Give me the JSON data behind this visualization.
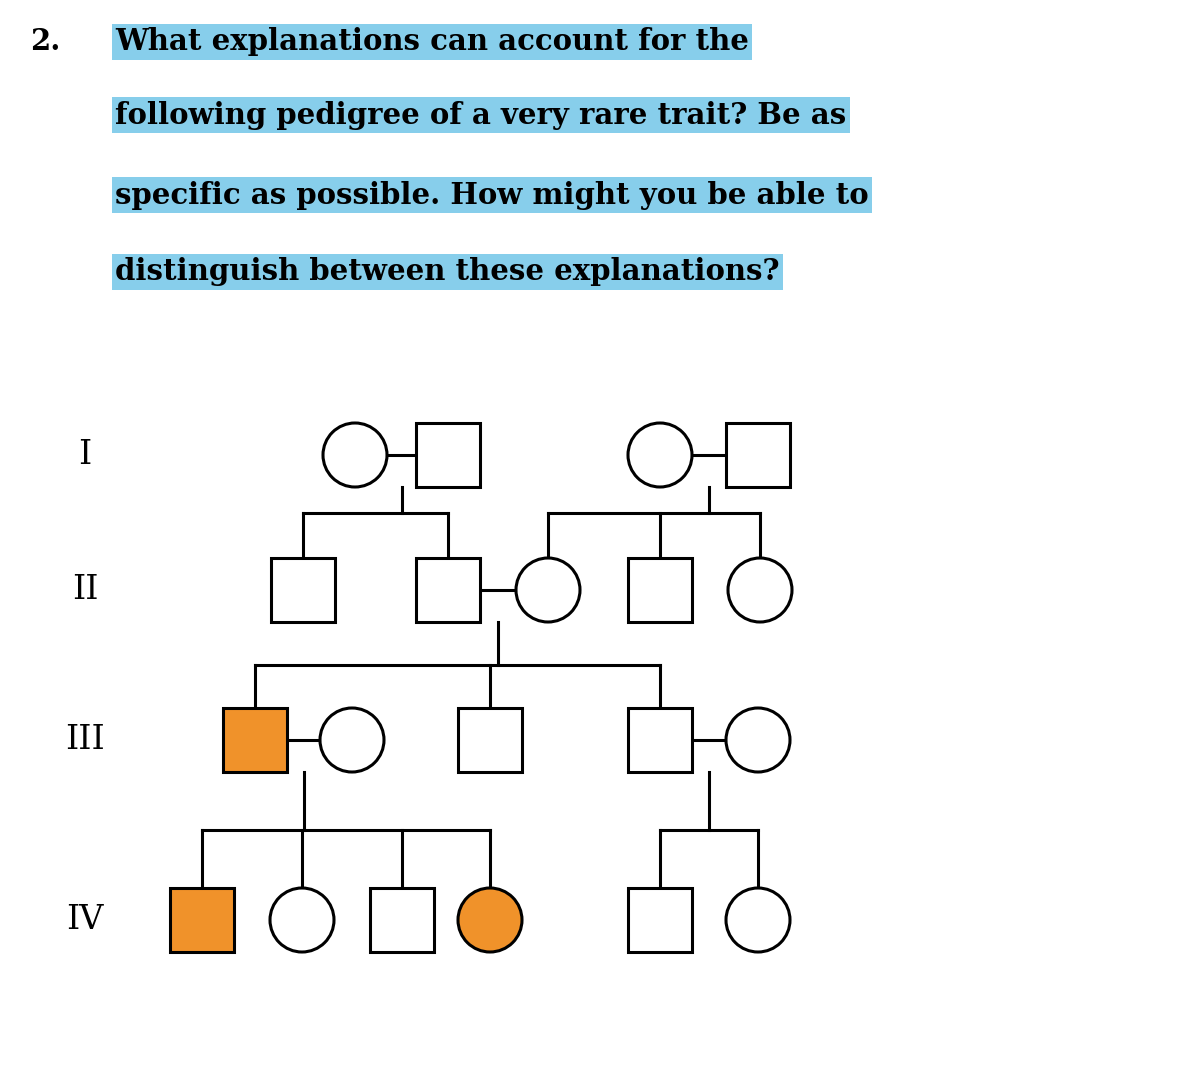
{
  "bg_color": "#ffffff",
  "highlight_color": "#87CEEB",
  "orange_color": "#F0922A",
  "line_color": "#000000",
  "generation_labels": [
    "I",
    "II",
    "III",
    "IV"
  ],
  "lw": 2.2,
  "title_fontsize": 21,
  "gen_label_fontsize": 24,
  "text_lines": [
    "What explanations can account for the",
    "following pedigree of a very rare trait? Be as",
    "specific as possible. How might you be able to",
    "distinguish between these explanations?"
  ]
}
